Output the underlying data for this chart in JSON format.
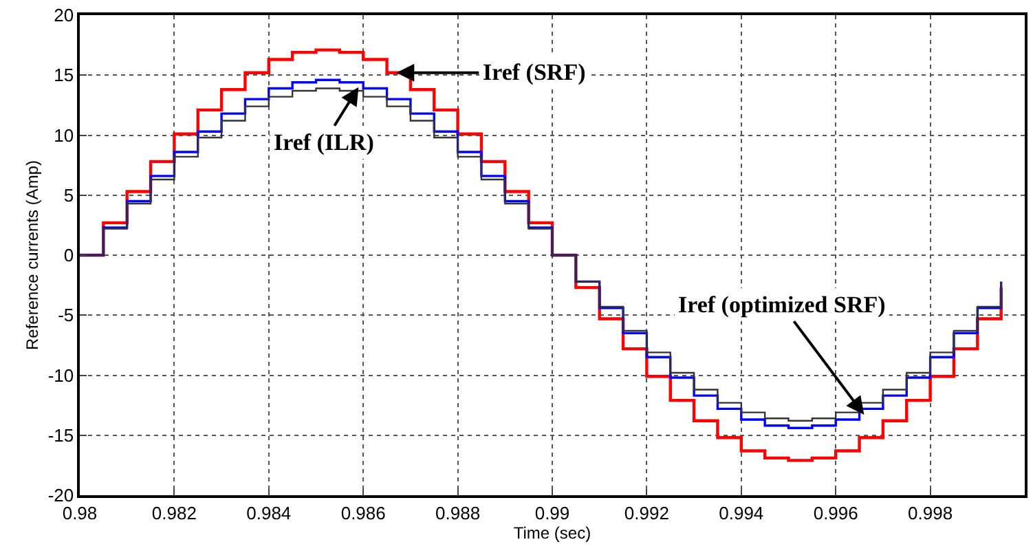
{
  "chart_data": {
    "type": "step",
    "xlabel": "Time (sec)",
    "ylabel": "Reference currents (Amp)",
    "x": [
      0.98,
      0.9805,
      0.981,
      0.9815,
      0.982,
      0.9825,
      0.983,
      0.9835,
      0.984,
      0.9845,
      0.985,
      0.9855,
      0.986,
      0.9865,
      0.987,
      0.9875,
      0.988,
      0.9885,
      0.989,
      0.9895,
      0.99,
      0.9905,
      0.991,
      0.9915,
      0.992,
      0.9925,
      0.993,
      0.9935,
      0.994,
      0.9945,
      0.995,
      0.9955,
      0.996,
      0.9965,
      0.997,
      0.9975,
      0.998,
      0.9985,
      0.999,
      0.9995
    ],
    "series": [
      {
        "color": "#ff0000",
        "values": [
          0,
          2.7,
          5.3,
          7.8,
          10.1,
          12.1,
          13.8,
          15.2,
          16.3,
          16.9,
          17.1,
          16.9,
          16.3,
          15.2,
          13.8,
          12.1,
          10.1,
          7.8,
          5.3,
          2.7,
          0,
          -2.7,
          -5.3,
          -7.8,
          -10.1,
          -12.1,
          -13.8,
          -15.2,
          -16.3,
          -16.9,
          -17.1,
          -16.9,
          -16.3,
          -15.2,
          -13.8,
          -12.1,
          -10.1,
          -7.8,
          -5.3,
          -2.7
        ]
      },
      {
        "color": "#0000ff",
        "values": [
          0,
          2.3,
          4.5,
          6.6,
          8.6,
          10.3,
          11.8,
          13.0,
          13.9,
          14.4,
          14.6,
          14.4,
          13.9,
          13.0,
          11.8,
          10.3,
          8.6,
          6.6,
          4.5,
          2.3,
          0,
          -2.2,
          -4.4,
          -6.5,
          -8.5,
          -10.2,
          -11.7,
          -12.8,
          -13.7,
          -14.2,
          -14.4,
          -14.2,
          -13.7,
          -12.8,
          -11.7,
          -10.2,
          -8.5,
          -6.5,
          -4.4,
          -2.2
        ]
      },
      {
        "color": "#333333",
        "values": [
          0,
          2.2,
          4.3,
          6.3,
          8.2,
          9.8,
          11.2,
          12.4,
          13.2,
          13.7,
          13.9,
          13.7,
          13.2,
          12.4,
          11.2,
          9.8,
          8.2,
          6.3,
          4.3,
          2.2,
          0,
          -2.2,
          -4.3,
          -6.3,
          -8.1,
          -9.8,
          -11.2,
          -12.3,
          -13.1,
          -13.6,
          -13.8,
          -13.6,
          -13.1,
          -12.3,
          -11.2,
          -9.8,
          -8.1,
          -6.3,
          -4.3,
          -2.2
        ]
      }
    ],
    "xlim": [
      0.98,
      1.0
    ],
    "xticks": [
      {
        "value": 0.98,
        "label": "0.98"
      },
      {
        "value": 0.982,
        "label": "0.982"
      },
      {
        "value": 0.984,
        "label": "0.984"
      },
      {
        "value": 0.986,
        "label": "0.986"
      },
      {
        "value": 0.988,
        "label": "0.988"
      },
      {
        "value": 0.99,
        "label": "0.99"
      },
      {
        "value": 0.992,
        "label": "0.992"
      },
      {
        "value": 0.994,
        "label": "0.994"
      },
      {
        "value": 0.996,
        "label": "0.996"
      },
      {
        "value": 0.998,
        "label": "0.998"
      }
    ],
    "ylim": [
      -20,
      20
    ],
    "yticks": [
      -20,
      -15,
      -10,
      -5,
      0,
      5,
      10,
      15,
      20
    ],
    "grid": true,
    "marker": "none",
    "line_style": "solid",
    "annotations": [
      {
        "text": "Iref (SRF)",
        "x": 0.9867,
        "y": 15.2
      },
      {
        "text": "Iref (ILR)",
        "x": 0.9859,
        "y": 14.0
      },
      {
        "text": "Iref (optimized SRF)",
        "x": 0.9966,
        "y": -13.3
      }
    ]
  }
}
